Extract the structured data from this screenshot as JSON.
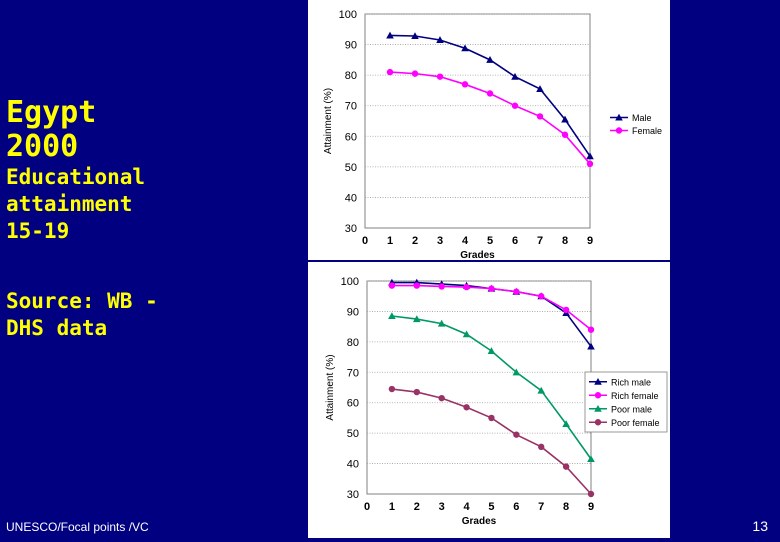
{
  "slide": {
    "title_country": "Egypt",
    "title_year": "2000",
    "subtitle_line1": "Educational",
    "subtitle_line2": "attainment",
    "subtitle_line3": "15-19",
    "source_line1": "Source: WB -",
    "source_line2": "DHS data",
    "footer_left": "UNESCO/Focal points /VC",
    "page_number": "13"
  },
  "chart_data": [
    {
      "type": "line",
      "title": "",
      "xlabel": "Grades",
      "ylabel": "Attainment (%)",
      "x": [
        1,
        2,
        3,
        4,
        5,
        6,
        7,
        8,
        9
      ],
      "xlim": [
        0,
        9
      ],
      "ylim": [
        30,
        100
      ],
      "xticks": [
        0,
        1,
        2,
        3,
        4,
        5,
        6,
        7,
        8,
        9
      ],
      "yticks": [
        30,
        40,
        50,
        60,
        70,
        80,
        90,
        100
      ],
      "legend": "right",
      "series": [
        {
          "name": "Male",
          "color": "#000080",
          "marker": "triangle",
          "values": [
            93,
            92.8,
            91.5,
            88.8,
            85,
            79.5,
            75.5,
            65.5,
            53.5
          ]
        },
        {
          "name": "Female",
          "color": "#ff00ff",
          "marker": "circle",
          "values": [
            81,
            80.5,
            79.5,
            77,
            74,
            70,
            66.5,
            60.5,
            51
          ]
        }
      ]
    },
    {
      "type": "line",
      "title": "",
      "xlabel": "Grades",
      "ylabel": "Attainment (%)",
      "x": [
        1,
        2,
        3,
        4,
        5,
        6,
        7,
        8,
        9
      ],
      "xlim": [
        0,
        9
      ],
      "ylim": [
        30,
        100
      ],
      "xticks": [
        0,
        1,
        2,
        3,
        4,
        5,
        6,
        7,
        8,
        9
      ],
      "yticks": [
        30,
        40,
        50,
        60,
        70,
        80,
        90,
        100
      ],
      "legend": "right",
      "series": [
        {
          "name": "Rich male",
          "color": "#000080",
          "marker": "triangle",
          "values": [
            99.5,
            99.5,
            99,
            98.5,
            97.5,
            96.5,
            95,
            89.5,
            78.5
          ]
        },
        {
          "name": "Rich female",
          "color": "#ff00ff",
          "marker": "circle",
          "values": [
            98.5,
            98.5,
            98.2,
            98,
            97.5,
            96.5,
            95,
            90.5,
            84
          ]
        },
        {
          "name": "Poor male",
          "color": "#009966",
          "marker": "triangle",
          "values": [
            88.5,
            87.5,
            86,
            82.5,
            77,
            70,
            64,
            53,
            41.5
          ]
        },
        {
          "name": "Poor female",
          "color": "#993366",
          "marker": "circle",
          "values": [
            64.5,
            63.5,
            61.5,
            58.5,
            55,
            49.5,
            45.5,
            39,
            30
          ]
        }
      ]
    }
  ]
}
